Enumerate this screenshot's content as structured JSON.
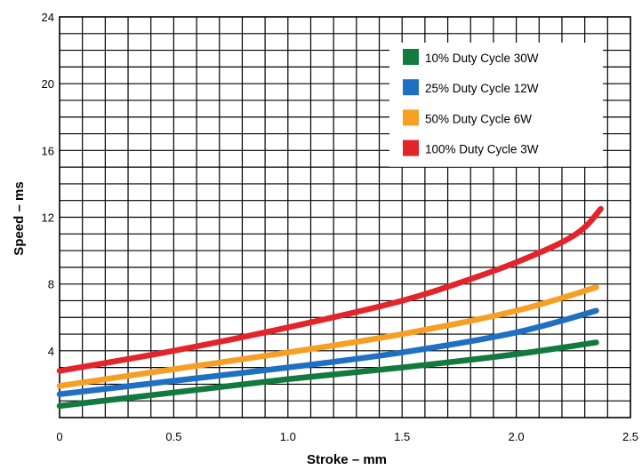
{
  "chart_data": {
    "type": "line",
    "title": "",
    "xlabel": "Stroke – mm",
    "ylabel": "Speed – ms",
    "xlim": [
      0,
      2.5
    ],
    "ylim": [
      0,
      24
    ],
    "x_ticks": [
      0,
      0.5,
      1.0,
      1.5,
      2.0,
      2.5
    ],
    "x_tick_labels": [
      "0",
      "0.5",
      "1.0",
      "1.5",
      "2.0",
      "2.5"
    ],
    "y_ticks": [
      4,
      8,
      12,
      16,
      20,
      24
    ],
    "y_tick_labels": [
      "4",
      "8",
      "12",
      "16",
      "20",
      "24"
    ],
    "grid": true,
    "legend_position": "top-right",
    "series": [
      {
        "name": "10% Duty Cycle 30W",
        "color": "#127a3e",
        "x": [
          0,
          0.5,
          1.0,
          1.5,
          2.0,
          2.35
        ],
        "y": [
          0.7,
          1.5,
          2.3,
          3.0,
          3.8,
          4.5
        ]
      },
      {
        "name": "25% Duty Cycle 12W",
        "color": "#1f6fc2",
        "x": [
          0,
          0.5,
          1.0,
          1.5,
          2.0,
          2.35
        ],
        "y": [
          1.4,
          2.2,
          3.0,
          3.9,
          5.1,
          6.4
        ]
      },
      {
        "name": "50% Duty Cycle 6W",
        "color": "#f5a024",
        "x": [
          0,
          0.5,
          1.0,
          1.5,
          2.0,
          2.35
        ],
        "y": [
          1.9,
          2.9,
          3.9,
          5.0,
          6.4,
          7.8
        ]
      },
      {
        "name": "100% Duty Cycle 3W",
        "color": "#e3242b",
        "x": [
          0,
          0.5,
          1.0,
          1.5,
          1.8,
          2.0,
          2.2,
          2.3,
          2.37
        ],
        "y": [
          2.8,
          4.0,
          5.4,
          7.0,
          8.3,
          9.3,
          10.5,
          11.4,
          12.5
        ]
      }
    ]
  }
}
